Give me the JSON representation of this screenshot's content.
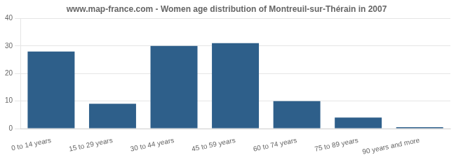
{
  "chart_data": {
    "type": "bar",
    "title": "www.map-france.com - Women age distribution of Montreuil-sur-Thérain in 2007",
    "categories": [
      "0 to 14 years",
      "15 to 29 years",
      "30 to 44 years",
      "45 to 59 years",
      "60 to 74 years",
      "75 to 89 years",
      "90 years and more"
    ],
    "values": [
      28,
      9,
      30,
      31,
      10,
      4,
      0.5
    ],
    "color": "#2e5f8a",
    "ylim": [
      0,
      40
    ],
    "yticks": [
      0,
      10,
      20,
      30,
      40
    ],
    "grid": true
  }
}
